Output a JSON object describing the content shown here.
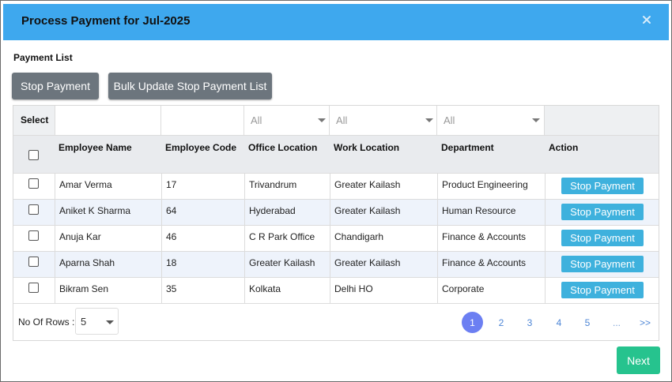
{
  "modal": {
    "title": "Process Payment for Jul-2025",
    "close_symbol": "×"
  },
  "section_label": "Payment List",
  "toolbar": {
    "stop_payment_label": "Stop Payment",
    "bulk_update_label": "Bulk Update Stop Payment List"
  },
  "filters": {
    "select_label": "Select",
    "office_location": "All",
    "work_location": "All",
    "department": "All"
  },
  "columns": {
    "employee_name": "Employee Name",
    "employee_code": "Employee Code",
    "office_location": "Office Location",
    "work_location": "Work Location",
    "department": "Department",
    "action": "Action"
  },
  "rows": [
    {
      "name": "Amar Verma",
      "code": "17",
      "office": "Trivandrum",
      "work": "Greater Kailash",
      "dept": "Product Engineering",
      "action": "Stop Payment"
    },
    {
      "name": "Aniket K Sharma",
      "code": "64",
      "office": "Hyderabad",
      "work": "Greater Kailash",
      "dept": "Human Resource",
      "action": "Stop Payment"
    },
    {
      "name": "Anuja Kar",
      "code": "46",
      "office": "C R Park Office",
      "work": "Chandigarh",
      "dept": "Finance & Accounts",
      "action": "Stop Payment"
    },
    {
      "name": "Aparna Shah",
      "code": "18",
      "office": "Greater Kailash",
      "work": "Greater Kailash",
      "dept": "Finance & Accounts",
      "action": "Stop Payment"
    },
    {
      "name": "Bikram Sen",
      "code": "35",
      "office": "Kolkata",
      "work": "Delhi HO",
      "dept": "Corporate",
      "action": "Stop Payment"
    }
  ],
  "pagination": {
    "rows_label": "No Of Rows :",
    "rows_value": "5",
    "pages": [
      "1",
      "2",
      "3",
      "4",
      "5"
    ],
    "active_page": "1",
    "ellipsis": "...",
    "next_symbol": ">>"
  },
  "footer": {
    "next_label": "Next"
  },
  "colors": {
    "header_bg": "#3ea8ee",
    "gray_button": "#6c757d",
    "row_button": "#3eb1dd",
    "next_button": "#26c38e",
    "active_page": "#6c7ff2"
  }
}
